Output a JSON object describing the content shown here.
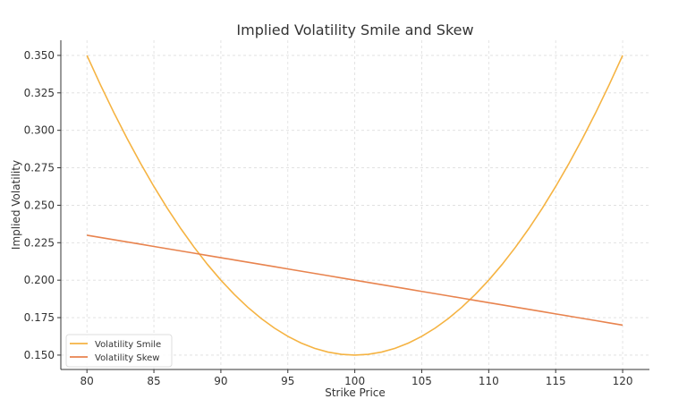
{
  "chart_data": {
    "type": "line",
    "title": "Implied Volatility Smile and Skew",
    "xlabel": "Strike Price",
    "ylabel": "Implied Volatility",
    "xlim": [
      78.05,
      122
    ],
    "ylim": [
      0.1404,
      0.3601
    ],
    "xticks": [
      80,
      85,
      90,
      95,
      100,
      105,
      110,
      115,
      120
    ],
    "xtick_labels": [
      "80",
      "85",
      "90",
      "95",
      "100",
      "105",
      "110",
      "115",
      "120"
    ],
    "yticks": [
      0.15,
      0.175,
      0.2,
      0.225,
      0.25,
      0.275,
      0.3,
      0.325,
      0.35
    ],
    "ytick_labels": [
      "0.150",
      "0.175",
      "0.200",
      "0.225",
      "0.250",
      "0.275",
      "0.300",
      "0.325",
      "0.350"
    ],
    "grid": true,
    "legend_position": "bottom-left",
    "x": [
      80,
      81,
      82,
      83,
      84,
      85,
      86,
      87,
      88,
      89,
      90,
      91,
      92,
      93,
      94,
      95,
      96,
      97,
      98,
      99,
      100,
      101,
      102,
      103,
      104,
      105,
      106,
      107,
      108,
      109,
      110,
      111,
      112,
      113,
      114,
      115,
      116,
      117,
      118,
      119,
      120
    ],
    "series": [
      {
        "name": "Volatility Smile",
        "color": "#f5b342",
        "values": [
          0.35,
          0.3305,
          0.312,
          0.2945,
          0.278,
          0.2625,
          0.248,
          0.2345,
          0.222,
          0.2105,
          0.2,
          0.1905,
          0.182,
          0.1745,
          0.168,
          0.1625,
          0.158,
          0.1545,
          0.152,
          0.1505,
          0.15,
          0.1505,
          0.152,
          0.1545,
          0.158,
          0.1625,
          0.168,
          0.1745,
          0.182,
          0.1905,
          0.2,
          0.2105,
          0.222,
          0.2345,
          0.248,
          0.2625,
          0.278,
          0.2945,
          0.312,
          0.3305,
          0.35
        ]
      },
      {
        "name": "Volatility Skew",
        "color": "#e8834e",
        "values": [
          0.23,
          0.2285,
          0.227,
          0.2255,
          0.224,
          0.2225,
          0.221,
          0.2195,
          0.218,
          0.2165,
          0.215,
          0.2135,
          0.212,
          0.2105,
          0.209,
          0.2075,
          0.206,
          0.2045,
          0.203,
          0.2015,
          0.2,
          0.1985,
          0.197,
          0.1955,
          0.194,
          0.1925,
          0.191,
          0.1895,
          0.188,
          0.1865,
          0.185,
          0.1835,
          0.182,
          0.1805,
          0.179,
          0.1775,
          0.176,
          0.1745,
          0.173,
          0.1715,
          0.17
        ]
      }
    ]
  }
}
